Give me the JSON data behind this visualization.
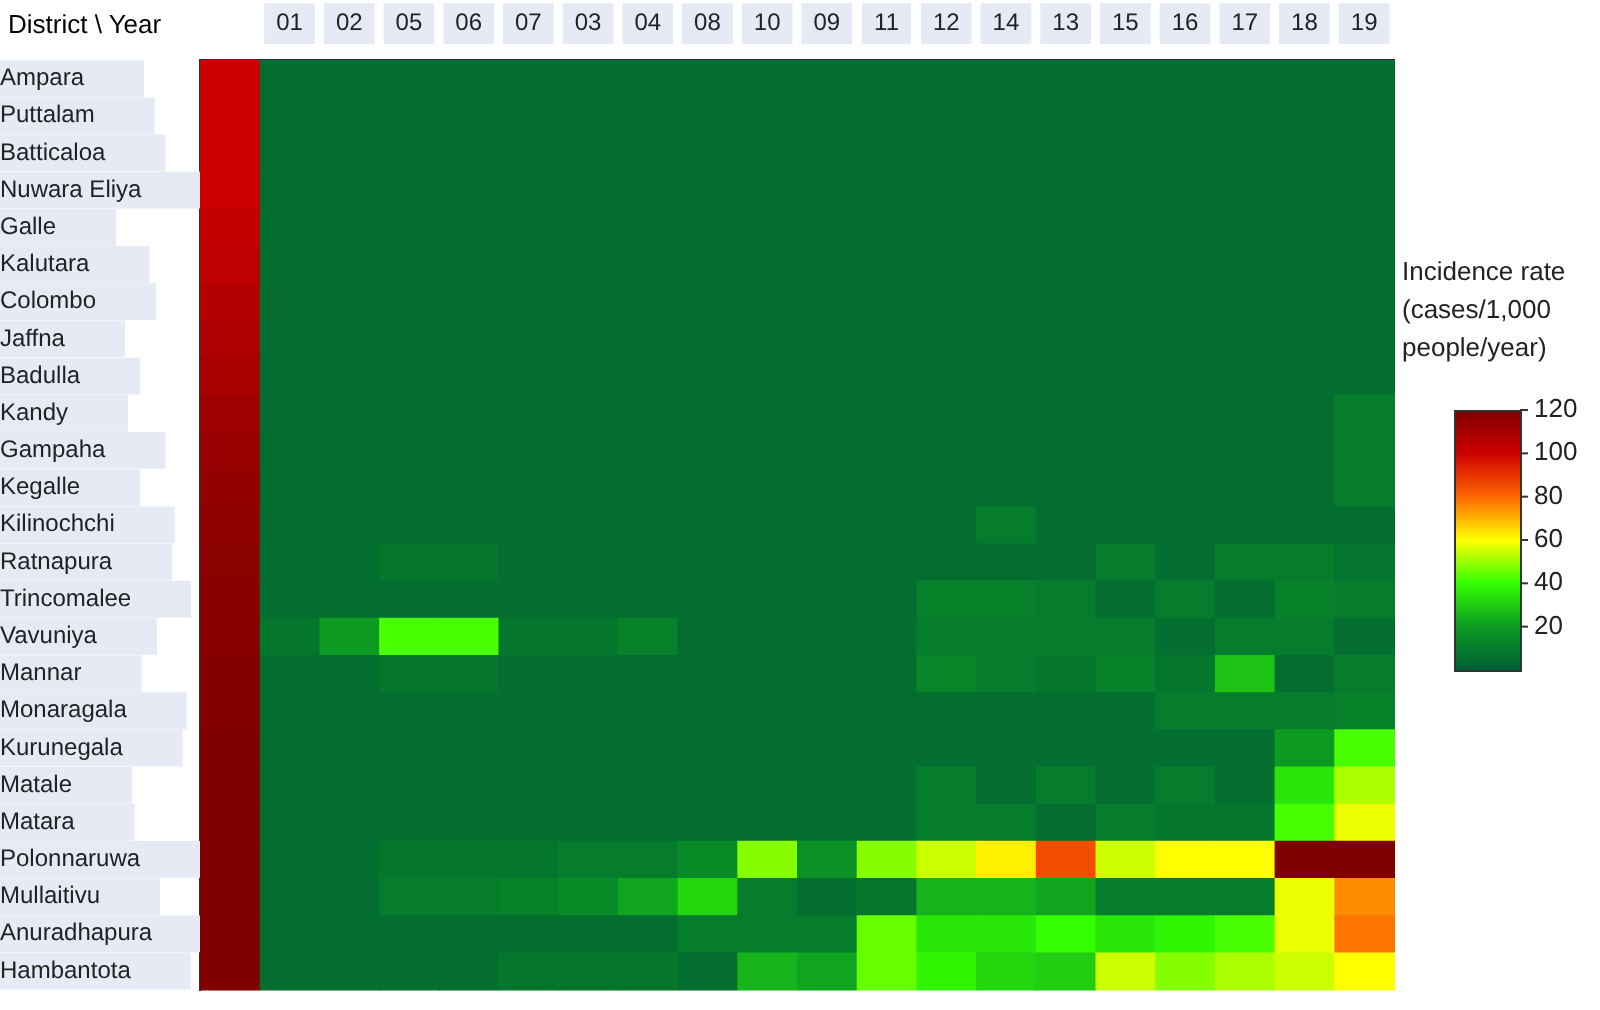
{
  "chart_data": {
    "type": "heatmap",
    "xlabel": "District \\ Year",
    "clabel": "Incidence rate (cases/1,000 people/year)",
    "categories": [
      null,
      "01",
      "02",
      "05",
      "06",
      "07",
      "03",
      "04",
      "08",
      "10",
      "09",
      "11",
      "12",
      "14",
      "13",
      "15",
      "16",
      "17",
      "18",
      "19"
    ],
    "y_categories": [
      "Ampara",
      "Puttalam",
      "Batticaloa",
      "Nuwara Eliya",
      "Galle",
      "Kalutara",
      "Colombo",
      "Jaffna",
      "Badulla",
      "Kandy",
      "Gampaha",
      "Kegalle",
      "Kilinochchi",
      "Ratnapura",
      "Trincomalee",
      "Vavuniya",
      "Mannar",
      "Monaragala",
      "Kurunegala",
      "Matale",
      "Matara",
      "Polonnaruwa",
      "Mullaitivu",
      "Anuradhapura",
      "Hambantota"
    ],
    "clim": [
      0,
      120
    ],
    "cticks": [
      20,
      40,
      60,
      80,
      100,
      120
    ],
    "cells": [
      [
        100,
        5,
        5,
        5,
        5,
        5,
        5,
        5,
        5,
        5,
        5,
        5,
        5,
        5,
        5,
        5,
        5,
        5,
        5,
        5
      ],
      [
        100,
        5,
        5,
        5,
        5,
        5,
        5,
        5,
        5,
        5,
        5,
        5,
        5,
        5,
        5,
        5,
        5,
        5,
        5,
        5
      ],
      [
        100,
        5,
        5,
        5,
        5,
        5,
        5,
        5,
        5,
        5,
        5,
        5,
        5,
        5,
        5,
        5,
        5,
        5,
        5,
        5
      ],
      [
        100,
        5,
        5,
        5,
        5,
        5,
        5,
        5,
        5,
        5,
        5,
        5,
        5,
        5,
        5,
        5,
        5,
        5,
        5,
        5
      ],
      [
        102,
        5,
        5,
        5,
        5,
        5,
        5,
        5,
        5,
        5,
        5,
        5,
        5,
        5,
        5,
        5,
        5,
        5,
        5,
        5
      ],
      [
        104,
        5,
        5,
        5,
        5,
        5,
        5,
        5,
        5,
        5,
        5,
        5,
        5,
        5,
        5,
        5,
        5,
        5,
        5,
        5
      ],
      [
        106,
        5,
        5,
        5,
        5,
        5,
        5,
        5,
        5,
        5,
        5,
        5,
        5,
        5,
        5,
        5,
        5,
        5,
        5,
        5
      ],
      [
        108,
        5,
        5,
        5,
        5,
        5,
        5,
        5,
        5,
        5,
        5,
        5,
        5,
        5,
        5,
        5,
        5,
        5,
        5,
        5
      ],
      [
        110,
        5,
        5,
        5,
        5,
        5,
        5,
        5,
        5,
        5,
        5,
        5,
        5,
        5,
        5,
        5,
        5,
        5,
        5,
        5
      ],
      [
        112,
        5,
        5,
        5,
        5,
        5,
        5,
        5,
        5,
        5,
        5,
        5,
        5,
        5,
        5,
        5,
        5,
        5,
        5,
        10
      ],
      [
        114,
        5,
        5,
        5,
        5,
        5,
        5,
        5,
        5,
        5,
        5,
        5,
        5,
        5,
        5,
        5,
        5,
        5,
        5,
        10
      ],
      [
        115,
        5,
        5,
        5,
        5,
        5,
        5,
        5,
        5,
        5,
        5,
        5,
        5,
        5,
        5,
        5,
        5,
        5,
        5,
        10
      ],
      [
        116,
        5,
        5,
        5,
        5,
        5,
        5,
        5,
        5,
        5,
        5,
        5,
        5,
        10,
        5,
        5,
        5,
        5,
        5,
        5
      ],
      [
        117,
        5,
        5,
        8,
        8,
        5,
        5,
        5,
        5,
        5,
        5,
        5,
        5,
        5,
        5,
        10,
        5,
        10,
        10,
        7
      ],
      [
        118,
        5,
        5,
        5,
        5,
        5,
        5,
        5,
        5,
        5,
        5,
        5,
        12,
        12,
        10,
        5,
        10,
        5,
        12,
        10
      ],
      [
        118,
        8,
        20,
        42,
        42,
        8,
        8,
        12,
        5,
        5,
        5,
        5,
        10,
        10,
        10,
        10,
        5,
        10,
        10,
        5
      ],
      [
        119,
        5,
        5,
        8,
        8,
        5,
        5,
        5,
        5,
        5,
        5,
        5,
        13,
        10,
        8,
        12,
        8,
        28,
        5,
        10
      ],
      [
        119,
        5,
        5,
        5,
        5,
        5,
        5,
        5,
        5,
        5,
        5,
        5,
        5,
        5,
        5,
        5,
        10,
        10,
        10,
        12
      ],
      [
        120,
        5,
        5,
        5,
        5,
        5,
        5,
        5,
        5,
        5,
        5,
        5,
        5,
        5,
        5,
        5,
        5,
        5,
        20,
        42
      ],
      [
        120,
        5,
        5,
        5,
        5,
        5,
        5,
        5,
        5,
        5,
        5,
        5,
        10,
        5,
        10,
        5,
        10,
        5,
        35,
        52
      ],
      [
        120,
        5,
        5,
        5,
        5,
        5,
        5,
        5,
        5,
        5,
        5,
        5,
        10,
        10,
        5,
        10,
        8,
        8,
        42,
        58
      ],
      [
        120,
        5,
        5,
        8,
        8,
        8,
        10,
        10,
        15,
        48,
        17,
        48,
        55,
        62,
        85,
        55,
        60,
        60,
        120,
        120
      ],
      [
        120,
        5,
        5,
        10,
        10,
        12,
        15,
        22,
        32,
        10,
        5,
        8,
        25,
        25,
        22,
        10,
        10,
        10,
        58,
        75
      ],
      [
        120,
        5,
        5,
        5,
        5,
        5,
        5,
        5,
        10,
        10,
        10,
        45,
        35,
        35,
        40,
        35,
        38,
        42,
        58,
        78
      ],
      [
        120,
        5,
        5,
        5,
        5,
        8,
        8,
        8,
        5,
        25,
        22,
        45,
        38,
        32,
        30,
        55,
        48,
        52,
        55,
        60
      ]
    ]
  }
}
